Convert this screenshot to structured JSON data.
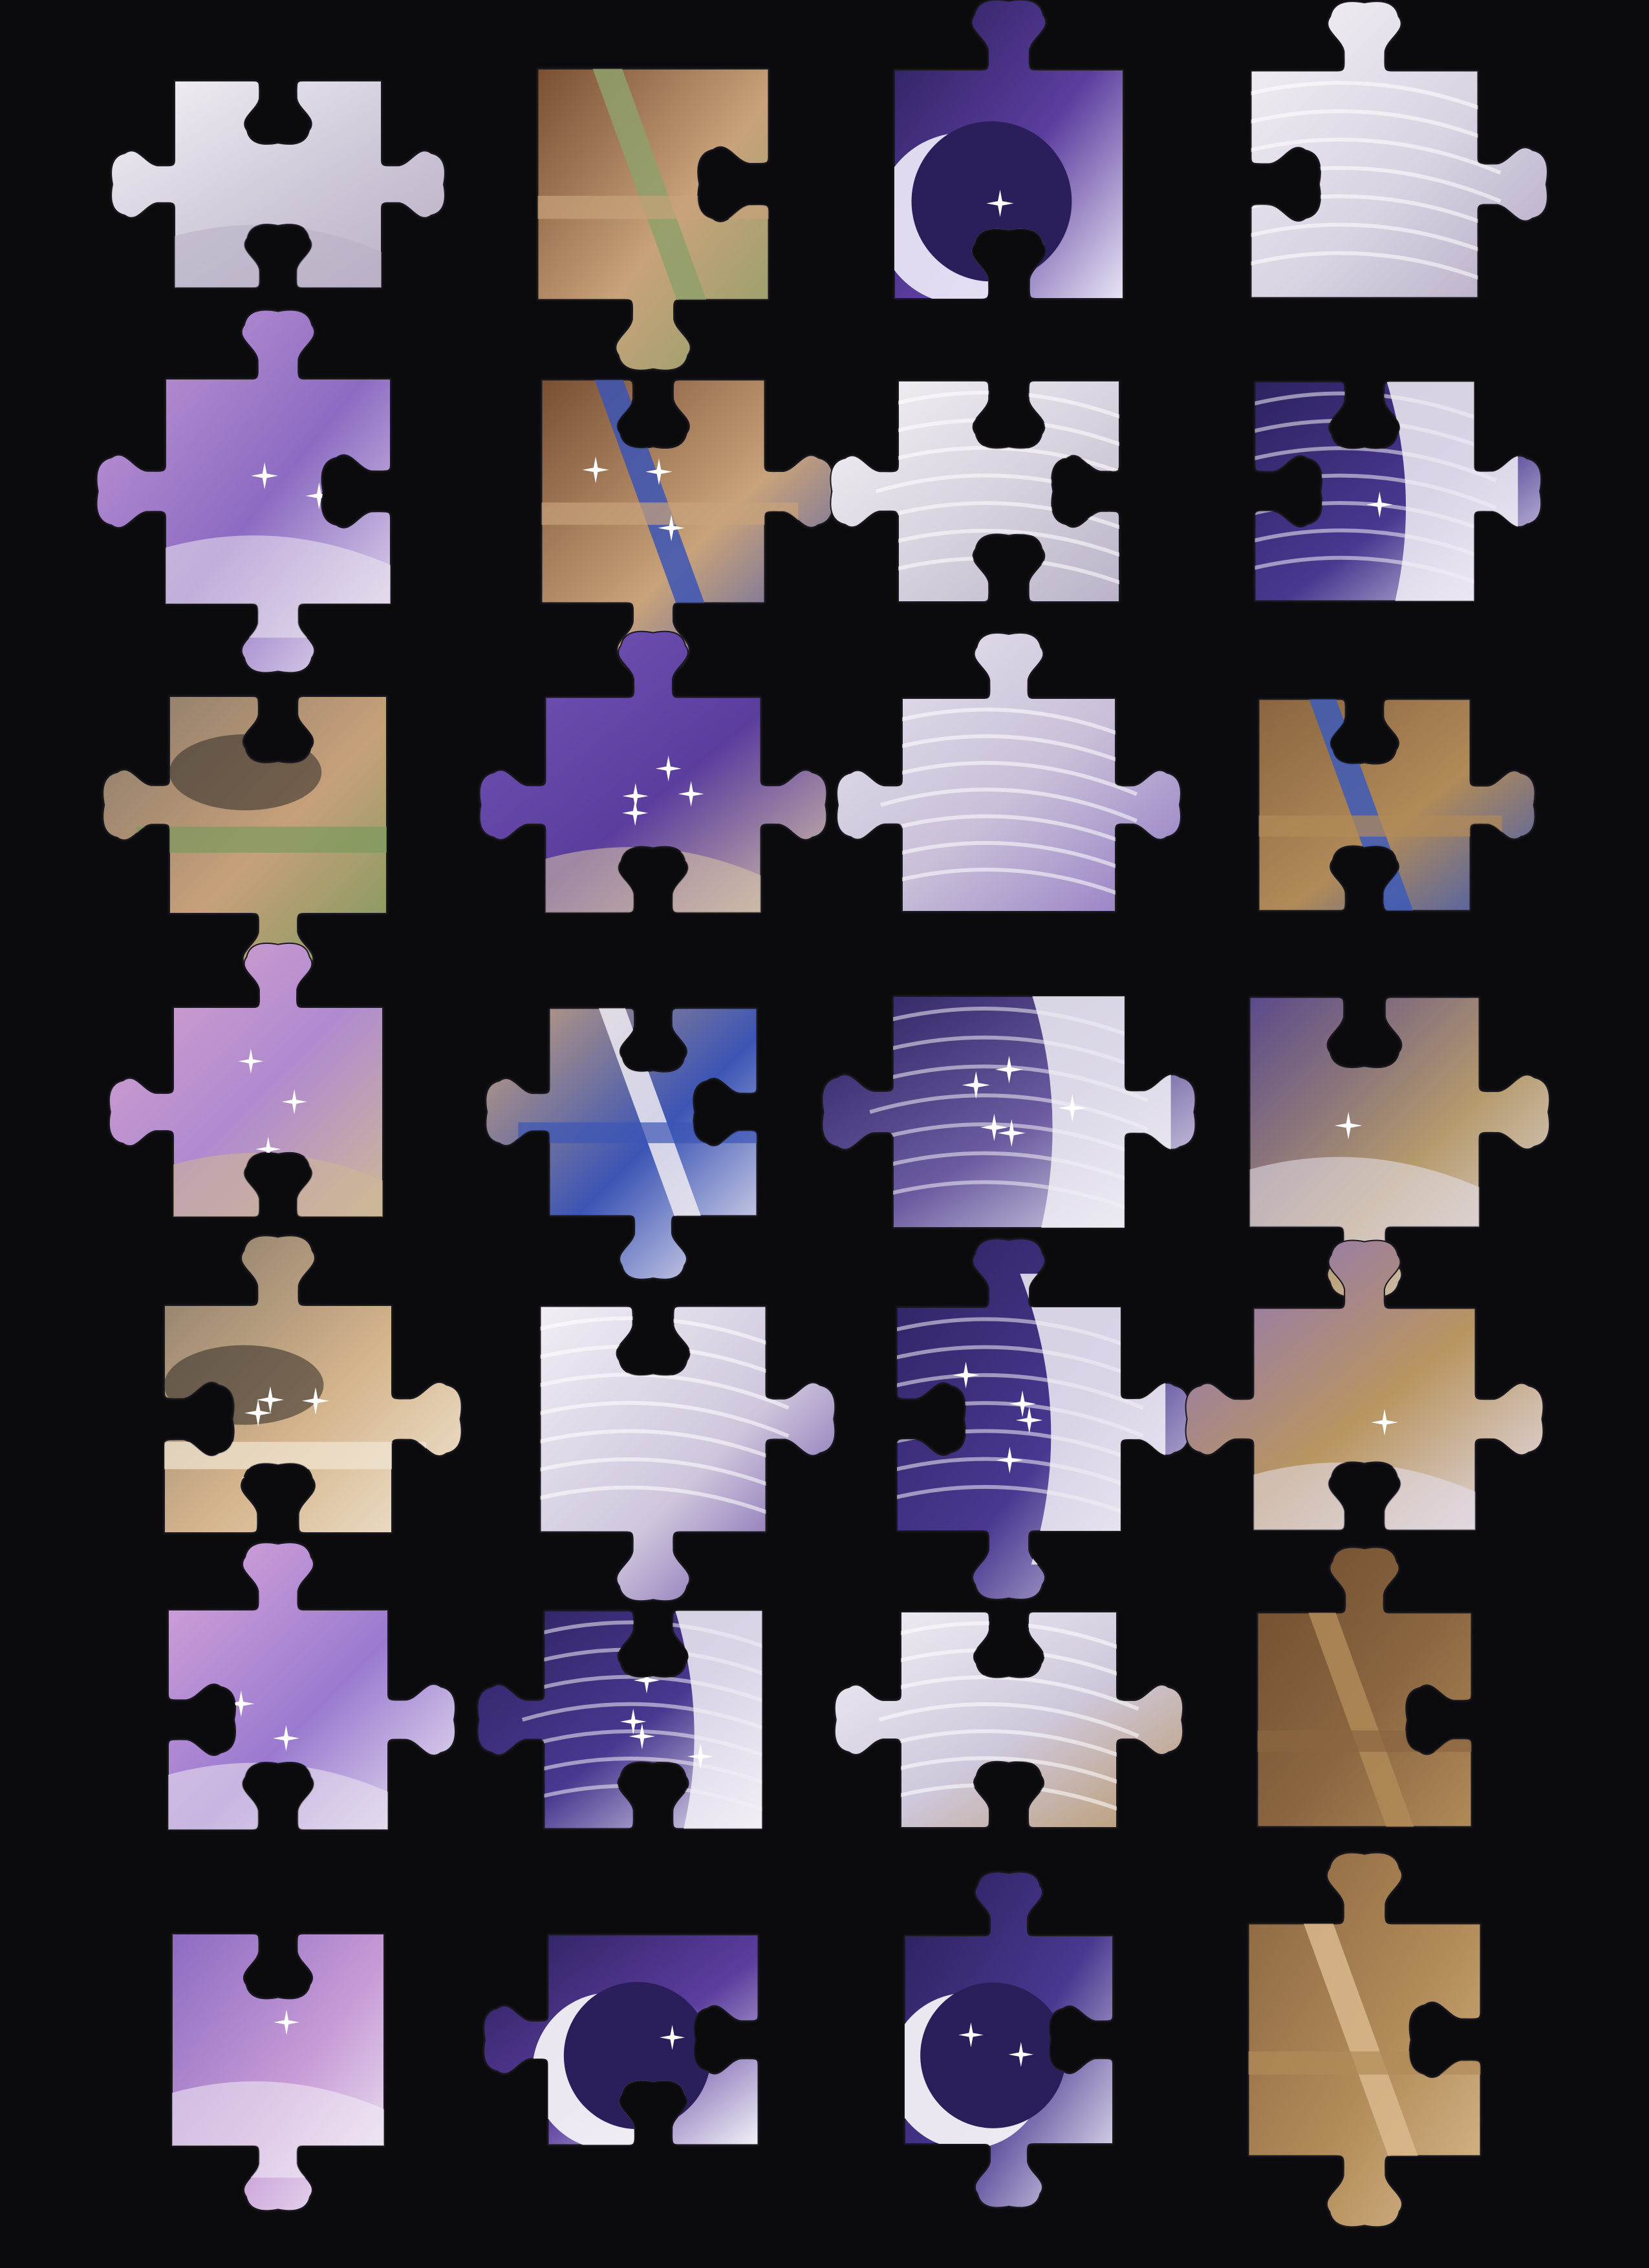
{
  "scene": {
    "background": "#0b0a0d",
    "description_none": ""
  },
  "pieces": [
    {
      "id": "r1c1",
      "palette": [
        "#f4f2f6",
        "#cfc8d8",
        "#b8aec4"
      ],
      "art": "lavender-white",
      "sparkles": 0
    },
    {
      "id": "r1c2",
      "palette": [
        "#7a4f33",
        "#c8a27a",
        "#8fa06b"
      ],
      "art": "brown-harness",
      "sparkles": 0
    },
    {
      "id": "r1c3",
      "palette": [
        "#2a1f5a",
        "#5b3d9e",
        "#e9e4f5"
      ],
      "art": "night-sky-moon",
      "sparkles": 1
    },
    {
      "id": "r1c4",
      "palette": [
        "#f4f2f6",
        "#d9d3e2",
        "#b5aac5"
      ],
      "art": "white-mane",
      "sparkles": 0
    },
    {
      "id": "r2c1",
      "palette": [
        "#c79bd6",
        "#8c6bc2",
        "#ece7f1"
      ],
      "art": "pink-purple",
      "sparkles": 2
    },
    {
      "id": "r2c2",
      "palette": [
        "#7a4f33",
        "#c8a27a",
        "#3c55b5"
      ],
      "art": "brown-harness",
      "sparkles": 3
    },
    {
      "id": "r2c3",
      "palette": [
        "#f4f2f6",
        "#d7d2de",
        "#bbb2c8"
      ],
      "art": "white-mane",
      "sparkles": 0
    },
    {
      "id": "r2c4",
      "palette": [
        "#2d2361",
        "#4a3790",
        "#f2eff6"
      ],
      "art": "night-sky-mane",
      "sparkles": 1
    },
    {
      "id": "r3c1",
      "palette": [
        "#8a7a6a",
        "#c6a07a",
        "#7a9a5c"
      ],
      "art": "metal-brown",
      "sparkles": 0
    },
    {
      "id": "r3c2",
      "palette": [
        "#7456b7",
        "#5b3d9e",
        "#d9c6a8"
      ],
      "art": "purple-sparkle",
      "sparkles": 5
    },
    {
      "id": "r3c3",
      "palette": [
        "#e9e6ef",
        "#c9bfd8",
        "#8f78c2"
      ],
      "art": "white-mane",
      "sparkles": 0
    },
    {
      "id": "r3c4",
      "palette": [
        "#8a6540",
        "#b08a58",
        "#3d5ab8"
      ],
      "art": "brown-harness",
      "sparkles": 0
    },
    {
      "id": "r4c1",
      "palette": [
        "#d9a4cc",
        "#b08ad0",
        "#cdb896"
      ],
      "art": "pink-purple",
      "sparkles": 3
    },
    {
      "id": "r4c2",
      "palette": [
        "#c8a27a",
        "#3c55b5",
        "#efeaf1"
      ],
      "art": "brown-harness",
      "sparkles": 0
    },
    {
      "id": "r4c3",
      "palette": [
        "#2b2160",
        "#6b5aa0",
        "#f0eef4"
      ],
      "art": "night-sky-mane",
      "sparkles": 5
    },
    {
      "id": "r4c4",
      "palette": [
        "#5a4a8c",
        "#b59a6c",
        "#e8e2ee"
      ],
      "art": "purple-sparkle",
      "sparkles": 1
    },
    {
      "id": "r5c1",
      "palette": [
        "#8a7a6a",
        "#d4b48c",
        "#f1e7d4"
      ],
      "art": "metal-brown",
      "sparkles": 4
    },
    {
      "id": "r5c2",
      "palette": [
        "#f1eef5",
        "#cfc6dc",
        "#5b3d9e"
      ],
      "art": "white-mane",
      "sparkles": 0
    },
    {
      "id": "r5c3",
      "palette": [
        "#2d2361",
        "#4a3790",
        "#f2eff6"
      ],
      "art": "night-sky-mane",
      "sparkles": 4
    },
    {
      "id": "r5c4",
      "palette": [
        "#8c72c6",
        "#b89560",
        "#e6e0ef"
      ],
      "art": "purple-sparkle",
      "sparkles": 1
    },
    {
      "id": "r6c1",
      "palette": [
        "#d8a6d8",
        "#9a7ad0",
        "#ece7f1"
      ],
      "art": "pink-purple",
      "sparkles": 2
    },
    {
      "id": "r6c2",
      "palette": [
        "#2d2361",
        "#4a3790",
        "#f2eff6"
      ],
      "art": "night-sky-mane",
      "sparkles": 4
    },
    {
      "id": "r6c3",
      "palette": [
        "#f2f0f5",
        "#cfc8dc",
        "#b99868"
      ],
      "art": "white-mane",
      "sparkles": 0
    },
    {
      "id": "r6c4",
      "palette": [
        "#6e4e2e",
        "#8a6540",
        "#b08a58"
      ],
      "art": "brown-harness",
      "sparkles": 0
    },
    {
      "id": "r7c1",
      "palette": [
        "#8c6bc2",
        "#c79bd6",
        "#f2eff6"
      ],
      "art": "pink-purple",
      "sparkles": 1
    },
    {
      "id": "r7c2",
      "palette": [
        "#2a1f5a",
        "#5b3d9e",
        "#f3f1f7"
      ],
      "art": "night-sky-moon",
      "sparkles": 1
    },
    {
      "id": "r7c3",
      "palette": [
        "#2a1f5a",
        "#4a3790",
        "#f3f1f7"
      ],
      "art": "night-sky-moon",
      "sparkles": 2
    },
    {
      "id": "r7c4",
      "palette": [
        "#8a6540",
        "#b08a58",
        "#d9b98c"
      ],
      "art": "brown-harness",
      "sparkles": 0
    }
  ]
}
